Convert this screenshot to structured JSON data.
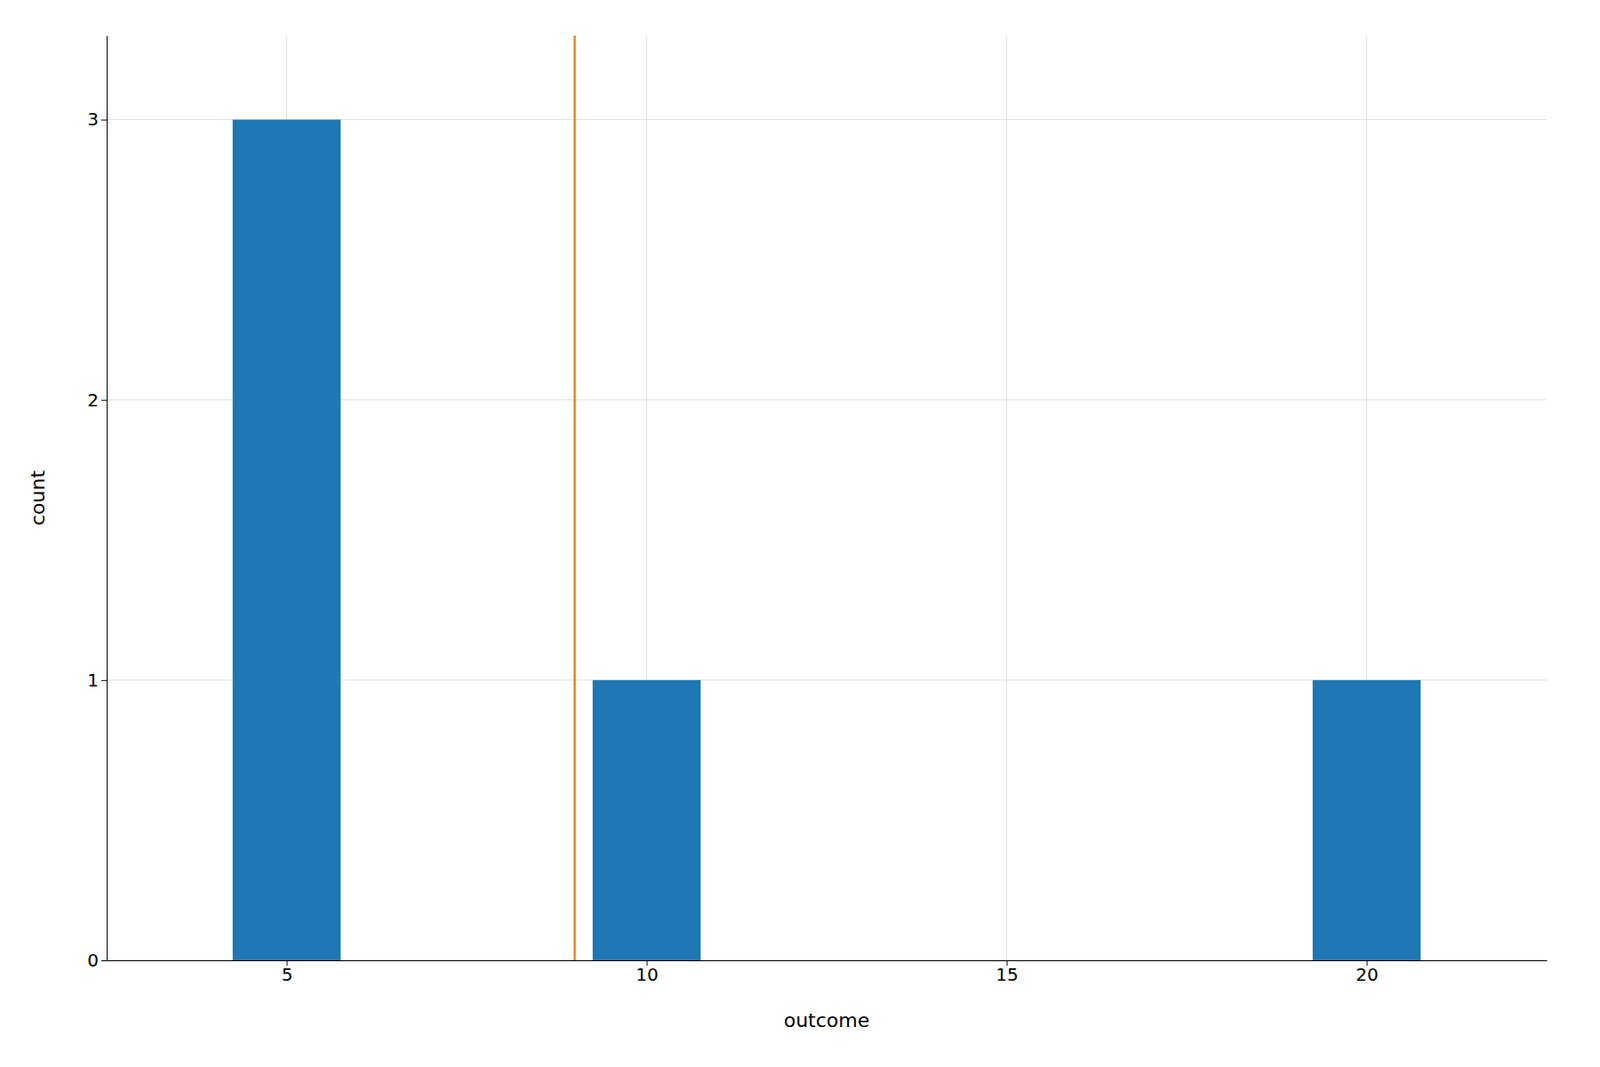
{
  "chart_data": {
    "type": "bar",
    "x": [
      5,
      10,
      20
    ],
    "values": [
      3,
      1,
      1
    ],
    "mean": 9.0,
    "xlabel": "outcome",
    "ylabel": "count",
    "xlim": [
      2.5,
      22.5
    ],
    "ylim": [
      0,
      3.3
    ],
    "xticks": [
      5,
      10,
      15,
      20
    ],
    "yticks": [
      0,
      1,
      2,
      3
    ],
    "grid": true
  }
}
